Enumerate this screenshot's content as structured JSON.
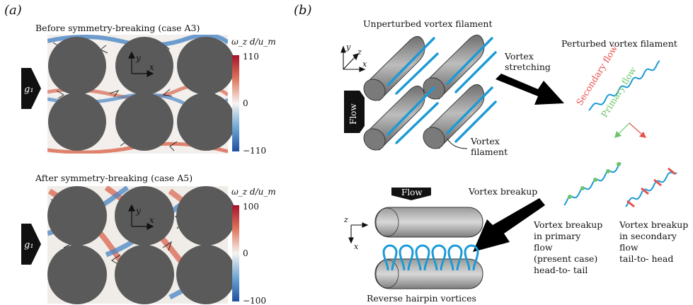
{
  "panel_a": {
    "label": "(a)",
    "top": {
      "title": "Before symmetry-breaking (case A3)",
      "cbar_label": "ω_z d/u_m",
      "cbar_max": "110",
      "cbar_mid": "0",
      "cbar_min": "−110",
      "arrow_label": "g₁",
      "axes": {
        "y": "y",
        "x": "x"
      }
    },
    "bottom": {
      "title": "After symmetry-breaking (case A5)",
      "cbar_label": "ω_z d/u_m",
      "cbar_max": "100",
      "cbar_mid": "0",
      "cbar_min": "−100",
      "arrow_label": "g₁",
      "axes": {
        "y": "y",
        "x": "x"
      }
    },
    "colors": {
      "positive": "#c0392b",
      "negative": "#2e6fb5",
      "zero": "#f4f1ee",
      "cylinder": "#5a5a5a"
    }
  },
  "panel_b": {
    "label": "(b)",
    "unperturbed_title": "Unperturbed vortex filament",
    "axes": {
      "y": "y",
      "z": "z",
      "x": "x"
    },
    "flow_label": "Flow",
    "vortex_filament_label_1": "Vortex",
    "vortex_filament_label_2": "filament",
    "stretching_label_1": "Vortex",
    "stretching_label_2": "stretching",
    "perturbed_title": "Perturbed vortex filament",
    "secondary_flow": "Secondary flow",
    "primary_flow": "Primary flow",
    "vortex_breakup_label": "Vortex breakup",
    "breakup_primary": [
      "Vortex breakup",
      "in primary",
      "flow",
      "(present case)",
      "head-to- tail"
    ],
    "breakup_secondary": [
      "Vortex breakup",
      "in secondary",
      "flow",
      "tail-to- head"
    ],
    "side_flow_label": "Flow",
    "side_axes": {
      "z": "z",
      "x": "x"
    },
    "hairpin_label": "Reverse hairpin vortices",
    "colors": {
      "filament": "#1b9ad6",
      "secondary": "#e8504a",
      "primary": "#6cc56a",
      "arrow": "#000000",
      "cylinder": "#8a8a8a"
    }
  }
}
